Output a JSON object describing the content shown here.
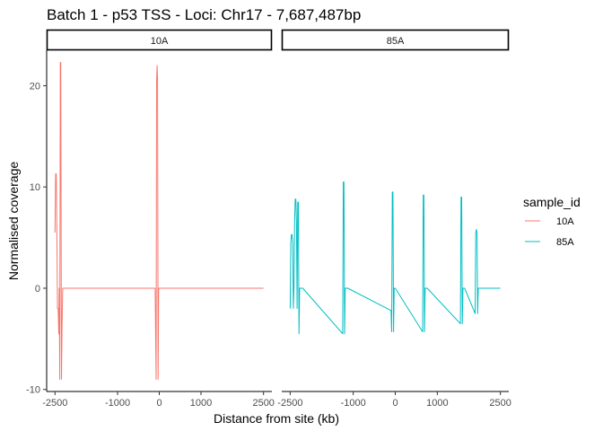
{
  "chart_data": {
    "type": "line",
    "title": "Batch 1 - p53 TSS - Loci: Chr17 - 7,687,487bp",
    "xlabel": "Distance from site (kb)",
    "ylabel": "Normalised coverage",
    "xlim": [
      -2700,
      2700
    ],
    "ylim": [
      -10.2,
      23.5
    ],
    "x_ticks": [
      -2500,
      -1000,
      0,
      1000,
      2500
    ],
    "x_tick_labels": [
      "-2500",
      "-1000",
      "0",
      "1000",
      "2500"
    ],
    "y_ticks": [
      -10,
      0,
      10,
      20
    ],
    "y_tick_labels": [
      "-10",
      "0",
      "10",
      "20"
    ],
    "grid": false,
    "legend": {
      "title": "sample_id",
      "position": "right"
    },
    "facets": [
      {
        "label": "10A",
        "series": [
          {
            "name": "10A",
            "color": "#F8766D",
            "x": [
              -2500,
              -2485,
              -2470,
              -2455,
              -2440,
              -2425,
              -2410,
              -2398,
              -2386,
              -2374,
              -2362,
              -2345,
              -2330,
              -2315,
              -2300,
              -2285,
              -2270,
              -2255,
              -2240,
              -2220,
              -100,
              -88,
              -76,
              -64,
              -52,
              -40,
              -28,
              -16,
              2500
            ],
            "y": [
              5.5,
              11.3,
              11.3,
              5.5,
              -2,
              -2,
              -4.5,
              0,
              -9,
              22.3,
              22.3,
              -9,
              -3.5,
              0,
              0,
              0,
              0,
              0,
              0,
              0,
              0,
              -4.3,
              -9,
              20.5,
              22,
              20.5,
              -9,
              0,
              0
            ]
          }
        ]
      },
      {
        "label": "85A",
        "series": [
          {
            "name": "85A",
            "color": "#00BFC4",
            "x": [
              -2500,
              -2485,
              -2470,
              -2455,
              -2440,
              -2425,
              -2410,
              -2395,
              -2380,
              -2365,
              -2350,
              -2335,
              -2320,
              -2305,
              -2290,
              -2275,
              -2260,
              -2245,
              -2200,
              -1250,
              -1235,
              -1220,
              -1205,
              -1190,
              -1175,
              -1130,
              -100,
              -85,
              -70,
              -55,
              -40,
              -25,
              0,
              650,
              665,
              680,
              695,
              710,
              725,
              760,
              1550,
              1565,
              1580,
              1595,
              1610,
              1625,
              1650,
              1900,
              1915,
              1930,
              1945,
              1960,
              1975,
              2000,
              2500
            ],
            "y": [
              -2,
              4.5,
              5.3,
              5.3,
              4.5,
              -2,
              0,
              6.5,
              8.8,
              8.8,
              6.5,
              -2,
              8.5,
              8.5,
              -4.5,
              0,
              0,
              0,
              0,
              -4.5,
              10.5,
              10.5,
              -4.5,
              0,
              0,
              0,
              -2.2,
              -4.3,
              9.5,
              9.5,
              -4.3,
              0,
              0,
              -4.3,
              9.2,
              9.2,
              -4.3,
              0,
              0,
              0,
              -3.5,
              9,
              9,
              -3.5,
              0,
              0,
              0,
              -2.5,
              5.5,
              5.8,
              5.5,
              -2.5,
              0,
              0,
              0
            ]
          }
        ]
      }
    ]
  }
}
